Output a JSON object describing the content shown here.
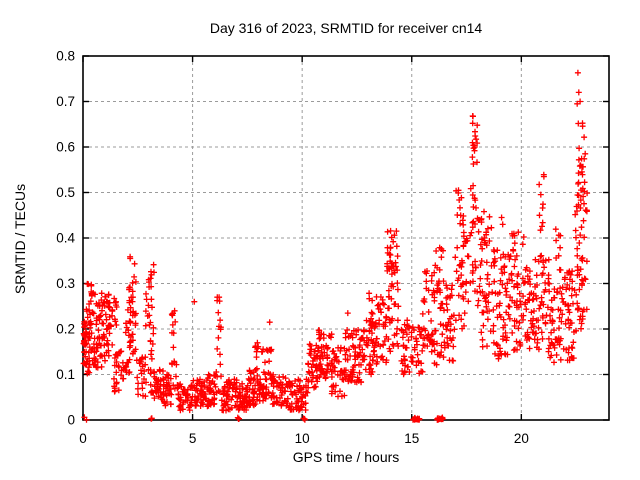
{
  "chart_data": {
    "type": "scatter",
    "title": "Day 316 of 2023, SRMTID for receiver cn14",
    "xlabel": "GPS time / hours",
    "ylabel": "SRMTID / TECUs",
    "xlim": [
      0,
      24
    ],
    "ylim": [
      0,
      0.8
    ],
    "xticks": [
      0,
      5,
      10,
      15,
      20
    ],
    "yticks": [
      0,
      0.1,
      0.2,
      0.3,
      0.4,
      0.5,
      0.6,
      0.7,
      0.8
    ],
    "grid": true,
    "legend": "none",
    "marker": "plus",
    "marker_color": "#ff0000",
    "grid_color": "#9b9b9b",
    "frame_color": "#000000",
    "background_color": "#ffffff",
    "series_name": "SRMTID receiver cn14",
    "clusters": [
      {
        "x": [
          0.02,
          0.18
        ],
        "y": [
          0.12,
          0.23
        ],
        "n": 28
      },
      {
        "x": [
          0.15,
          0.55
        ],
        "y": [
          0.1,
          0.3
        ],
        "n": 50
      },
      {
        "x": [
          0.55,
          0.95
        ],
        "y": [
          0.11,
          0.28
        ],
        "n": 42
      },
      {
        "x": [
          0.95,
          1.35
        ],
        "y": [
          0.13,
          0.28
        ],
        "n": 38
      },
      {
        "x": [
          1.35,
          1.6
        ],
        "y": [
          0.2,
          0.27
        ],
        "n": 8
      },
      {
        "x": [
          1.4,
          1.9
        ],
        "y": [
          0.06,
          0.16
        ],
        "n": 28
      },
      {
        "x": [
          1.9,
          2.2
        ],
        "y": [
          0.1,
          0.25
        ],
        "n": 22
      },
      {
        "x": [
          2.1,
          2.45
        ],
        "y": [
          0.14,
          0.36
        ],
        "n": 32
      },
      {
        "x": [
          2.45,
          2.85
        ],
        "y": [
          0.05,
          0.14
        ],
        "n": 22
      },
      {
        "x": [
          2.85,
          3.25
        ],
        "y": [
          0.06,
          0.36
        ],
        "n": 40
      },
      {
        "x": [
          3.25,
          3.7
        ],
        "y": [
          0.04,
          0.12
        ],
        "n": 36
      },
      {
        "x": [
          3.7,
          4.05
        ],
        "y": [
          0.03,
          0.1
        ],
        "n": 28
      },
      {
        "x": [
          4.05,
          4.3
        ],
        "y": [
          0.06,
          0.24
        ],
        "n": 16
      },
      {
        "x": [
          4.3,
          5.0
        ],
        "y": [
          0.02,
          0.08
        ],
        "n": 50
      },
      {
        "x": [
          5.0,
          5.6
        ],
        "y": [
          0.03,
          0.09
        ],
        "n": 42
      },
      {
        "x": [
          5.6,
          6.05
        ],
        "y": [
          0.03,
          0.1
        ],
        "n": 36
      },
      {
        "x": [
          6.05,
          6.3
        ],
        "y": [
          0.05,
          0.27
        ],
        "n": 18
      },
      {
        "x": [
          6.3,
          7.05
        ],
        "y": [
          0.02,
          0.09
        ],
        "n": 55
      },
      {
        "x": [
          7.05,
          7.55
        ],
        "y": [
          0.02,
          0.08
        ],
        "n": 40
      },
      {
        "x": [
          7.55,
          8.1
        ],
        "y": [
          0.03,
          0.11
        ],
        "n": 45
      },
      {
        "x": [
          7.85,
          8.0
        ],
        "y": [
          0.1,
          0.18
        ],
        "n": 8
      },
      {
        "x": [
          8.1,
          8.6
        ],
        "y": [
          0.04,
          0.16
        ],
        "n": 40
      },
      {
        "x": [
          8.6,
          9.3
        ],
        "y": [
          0.03,
          0.1
        ],
        "n": 50
      },
      {
        "x": [
          9.3,
          10.25
        ],
        "y": [
          0.02,
          0.09
        ],
        "n": 60
      },
      {
        "x": [
          10.25,
          10.7
        ],
        "y": [
          0.07,
          0.17
        ],
        "n": 40
      },
      {
        "x": [
          10.7,
          11.35
        ],
        "y": [
          0.09,
          0.2
        ],
        "n": 55
      },
      {
        "x": [
          11.35,
          11.95
        ],
        "y": [
          0.05,
          0.16
        ],
        "n": 40
      },
      {
        "x": [
          11.95,
          12.7
        ],
        "y": [
          0.08,
          0.2
        ],
        "n": 60
      },
      {
        "x": [
          12.7,
          13.35
        ],
        "y": [
          0.1,
          0.22
        ],
        "n": 50
      },
      {
        "x": [
          13.05,
          13.25
        ],
        "y": [
          0.2,
          0.3
        ],
        "n": 8
      },
      {
        "x": [
          13.35,
          13.85
        ],
        "y": [
          0.12,
          0.28
        ],
        "n": 36
      },
      {
        "x": [
          13.85,
          14.45
        ],
        "y": [
          0.15,
          0.42
        ],
        "n": 48
      },
      {
        "x": [
          14.0,
          14.35
        ],
        "y": [
          0.32,
          0.41
        ],
        "n": 12
      },
      {
        "x": [
          14.45,
          15.05
        ],
        "y": [
          0.1,
          0.22
        ],
        "n": 36
      },
      {
        "x": [
          15.1,
          15.5
        ],
        "y": [
          0.1,
          0.22
        ],
        "n": 22
      },
      {
        "x": [
          15.5,
          16.0
        ],
        "y": [
          0.15,
          0.33
        ],
        "n": 36
      },
      {
        "x": [
          16.0,
          16.45
        ],
        "y": [
          0.12,
          0.38
        ],
        "n": 40
      },
      {
        "x": [
          16.45,
          16.95
        ],
        "y": [
          0.13,
          0.3
        ],
        "n": 36
      },
      {
        "x": [
          16.95,
          17.45
        ],
        "y": [
          0.2,
          0.52
        ],
        "n": 40
      },
      {
        "x": [
          17.45,
          18.15
        ],
        "y": [
          0.25,
          0.45
        ],
        "n": 36
      },
      {
        "x": [
          17.7,
          18.0
        ],
        "y": [
          0.55,
          0.7
        ],
        "n": 16
      },
      {
        "x": [
          17.6,
          17.95
        ],
        "y": [
          0.46,
          0.52
        ],
        "n": 7
      },
      {
        "x": [
          18.15,
          18.75
        ],
        "y": [
          0.15,
          0.47
        ],
        "n": 50
      },
      {
        "x": [
          18.75,
          19.45
        ],
        "y": [
          0.13,
          0.38
        ],
        "n": 55
      },
      {
        "x": [
          19.45,
          20.15
        ],
        "y": [
          0.15,
          0.42
        ],
        "n": 55
      },
      {
        "x": [
          20.15,
          20.6
        ],
        "y": [
          0.15,
          0.35
        ],
        "n": 36
      },
      {
        "x": [
          20.8,
          21.05
        ],
        "y": [
          0.41,
          0.54
        ],
        "n": 10
      },
      {
        "x": [
          20.6,
          21.3
        ],
        "y": [
          0.15,
          0.38
        ],
        "n": 50
      },
      {
        "x": [
          21.3,
          21.95
        ],
        "y": [
          0.12,
          0.3
        ],
        "n": 45
      },
      {
        "x": [
          21.55,
          21.8
        ],
        "y": [
          0.3,
          0.42
        ],
        "n": 9
      },
      {
        "x": [
          21.95,
          22.45
        ],
        "y": [
          0.12,
          0.33
        ],
        "n": 40
      },
      {
        "x": [
          22.45,
          23.0
        ],
        "y": [
          0.17,
          0.5
        ],
        "n": 55
      },
      {
        "x": [
          22.55,
          22.95
        ],
        "y": [
          0.5,
          0.66
        ],
        "n": 22
      }
    ],
    "axis_zero_clusters": [
      {
        "x": [
          0.05,
          0.18
        ],
        "n": 2
      },
      {
        "x": [
          3.1,
          3.22
        ],
        "n": 2
      },
      {
        "x": [
          7.0,
          7.25
        ],
        "n": 3
      },
      {
        "x": [
          10.05,
          10.2
        ],
        "n": 3
      },
      {
        "x": [
          15.05,
          15.35
        ],
        "n": 16
      },
      {
        "x": [
          16.15,
          16.45
        ],
        "n": 14
      }
    ],
    "outlier_points": [
      [
        22.58,
        0.763
      ],
      [
        22.62,
        0.72
      ],
      [
        22.68,
        0.7
      ],
      [
        22.55,
        0.695
      ],
      [
        0.38,
        0.295
      ],
      [
        4.18,
        0.24
      ],
      [
        5.08,
        0.26
      ],
      [
        6.13,
        0.27
      ],
      [
        8.52,
        0.215
      ],
      [
        12.08,
        0.235
      ],
      [
        19.1,
        0.445
      ],
      [
        19.15,
        0.43
      ]
    ]
  }
}
